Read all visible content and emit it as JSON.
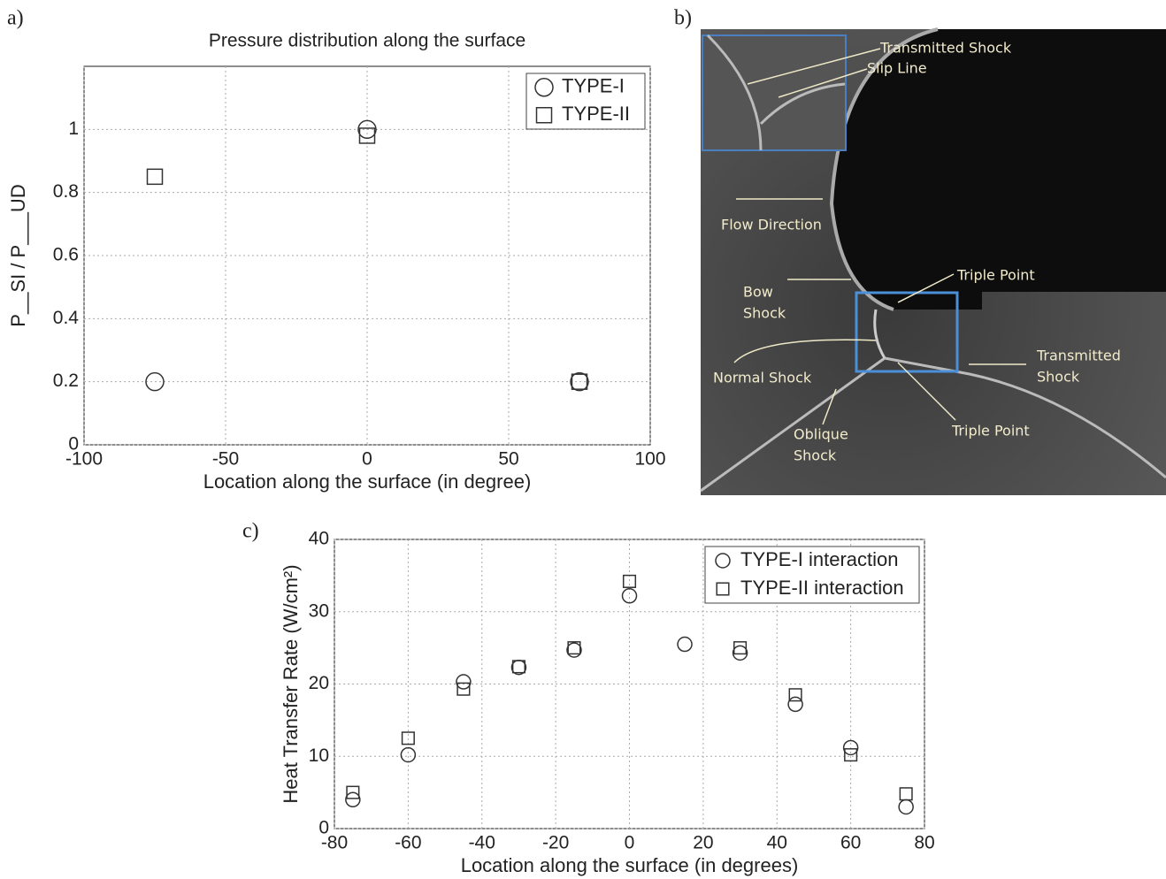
{
  "panel_labels": [
    "a)",
    "b)",
    "c)"
  ],
  "chart_data": [
    {
      "type": "scatter",
      "title": "Pressure distribution along the surface",
      "x_label": "Location along the surface (in degree)",
      "y_label": "P__SI / P___UD",
      "xlim": [
        -100,
        100
      ],
      "xticks": [
        -100,
        -50,
        0,
        50,
        100
      ],
      "ylim": [
        0,
        1.2
      ],
      "yticks": [
        0,
        0.2,
        0.4,
        0.6,
        0.8,
        1
      ],
      "grid": true,
      "legend": "upper right",
      "series": [
        {
          "name": "TYPE-I",
          "color": "#333333",
          "marker": "circle",
          "x": [
            -75,
            0,
            75
          ],
          "values": [
            0.2,
            1.0,
            0.2
          ]
        },
        {
          "name": "TYPE-II",
          "color": "#333333",
          "marker": "square",
          "x": [
            -75,
            0,
            75
          ],
          "values": [
            0.85,
            0.98,
            0.2
          ]
        }
      ]
    },
    {
      "type": "scatter",
      "x_label": "Location along the surface (in degrees)",
      "y_label": "Heat Transfer Rate (W/cm²)",
      "xlim": [
        -80,
        80
      ],
      "xticks": [
        -80,
        -60,
        -40,
        -20,
        0,
        20,
        40,
        60,
        80
      ],
      "ylim": [
        0,
        40
      ],
      "yticks": [
        0,
        10,
        20,
        30,
        40
      ],
      "grid": true,
      "legend": "upper right",
      "series": [
        {
          "name": "TYPE-I interaction",
          "color": "#333333",
          "marker": "circle",
          "x": [
            -75,
            -60,
            -45,
            -30,
            -15,
            0,
            15,
            30,
            45,
            60,
            75
          ],
          "values": [
            4.0,
            10.2,
            20.3,
            22.3,
            24.7,
            32.2,
            25.5,
            24.3,
            17.2,
            11.2,
            3.0
          ]
        },
        {
          "name": "TYPE-II interaction",
          "color": "#333333",
          "marker": "square",
          "x": [
            -75,
            -60,
            -45,
            -30,
            -15,
            0,
            30,
            45,
            60,
            75
          ],
          "values": [
            5.0,
            12.5,
            19.3,
            22.4,
            25.0,
            34.2,
            25.0,
            18.5,
            10.2,
            4.8
          ]
        }
      ]
    }
  ],
  "image": {
    "labels": [
      [
        "Transmitted Shock"
      ],
      [
        "Slip Line"
      ],
      [
        "Flow Direction"
      ],
      [
        "Bow",
        "Shock"
      ],
      [
        "Triple Point"
      ],
      [
        "Normal Shock"
      ],
      [
        "Transmitted",
        "Shock"
      ],
      [
        "Oblique",
        "Shock"
      ],
      [
        "Triple Point"
      ]
    ]
  }
}
